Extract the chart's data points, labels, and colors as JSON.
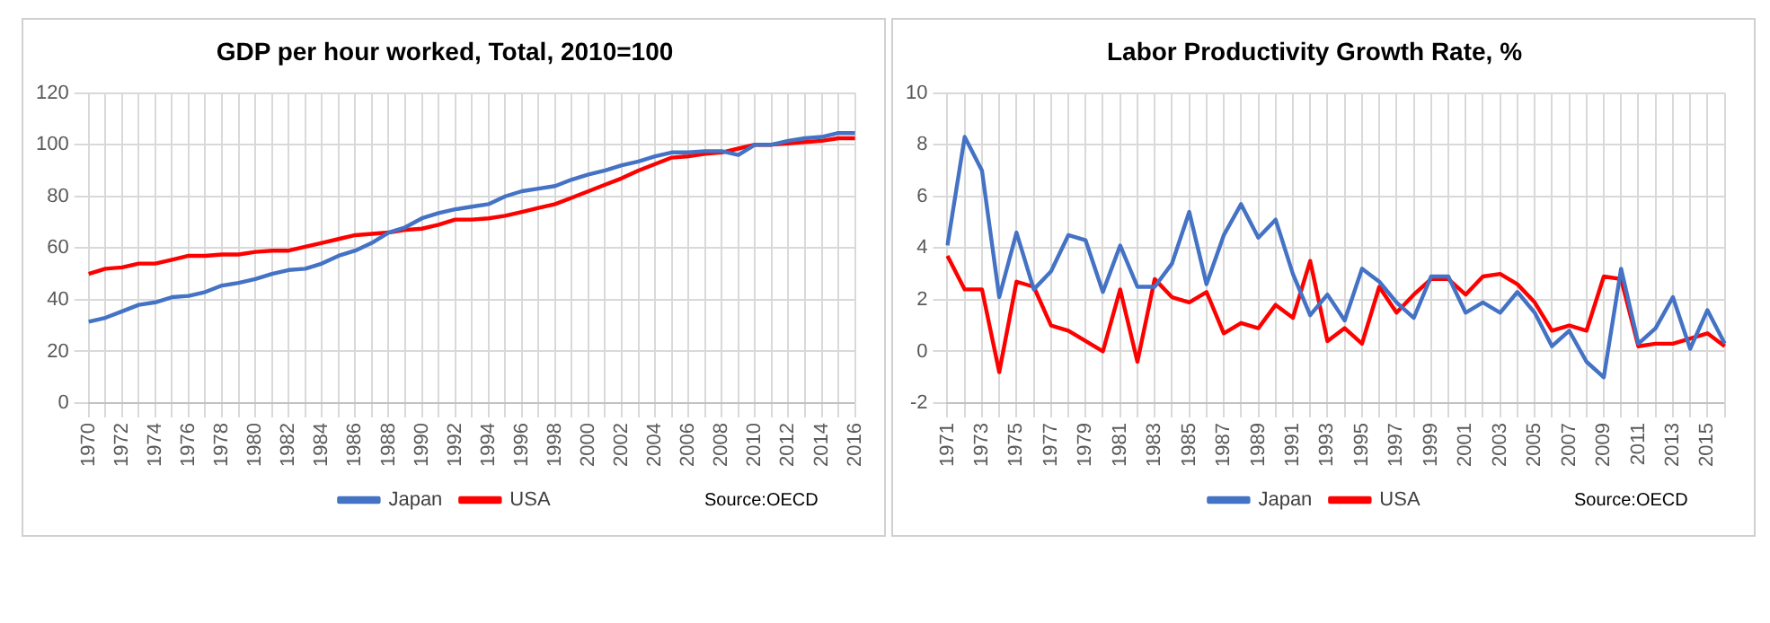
{
  "chart_data": [
    {
      "type": "line",
      "title": "GDP per hour worked, Total, 2010=100",
      "categories": [
        "1970",
        null,
        "1972",
        null,
        "1974",
        null,
        "1976",
        null,
        "1978",
        null,
        "1980",
        null,
        "1982",
        null,
        "1984",
        null,
        "1986",
        null,
        "1988",
        null,
        "1990",
        null,
        "1992",
        null,
        "1994",
        null,
        "1996",
        null,
        "1998",
        null,
        "2000",
        null,
        "2002",
        null,
        "2004",
        null,
        "2006",
        null,
        "2008",
        null,
        "2010",
        null,
        "2012",
        null,
        "2014",
        null,
        "2016"
      ],
      "series": [
        {
          "name": "Japan",
          "color": "#4472c4",
          "values": [
            31.5,
            33,
            35.5,
            38,
            39,
            41,
            41.5,
            43,
            45.5,
            46.5,
            48,
            50,
            51.5,
            52,
            54,
            57,
            59,
            62,
            66,
            68,
            71.5,
            73.5,
            75,
            76,
            77,
            80,
            82,
            83,
            84,
            86.5,
            88.5,
            90,
            92,
            93.5,
            95.5,
            97,
            97,
            97.5,
            97.5,
            96,
            100,
            100,
            101.5,
            102.5,
            103,
            104.5,
            104.5
          ]
        },
        {
          "name": "USA",
          "color": "#ff0000",
          "values": [
            50,
            52,
            52.5,
            54,
            54,
            55.5,
            57,
            57,
            57.5,
            57.5,
            58.5,
            59,
            59,
            60.5,
            62,
            63.5,
            65,
            65.5,
            66,
            67,
            67.5,
            69,
            71,
            71,
            71.5,
            72.5,
            74,
            75.5,
            77,
            79.5,
            82,
            84.5,
            87,
            90,
            92.5,
            95,
            95.5,
            96.5,
            97,
            98.5,
            100,
            100,
            100.5,
            101,
            101.5,
            102.5,
            102.5
          ]
        }
      ],
      "ylim": [
        0,
        120
      ],
      "yticks": [
        0,
        20,
        40,
        60,
        80,
        100,
        120
      ],
      "grid": true,
      "legend": "bottom",
      "annotations": [
        "Source:OECD"
      ]
    },
    {
      "type": "line",
      "title": "Labor Productivity Growth Rate, %",
      "categories": [
        "1971",
        null,
        "1973",
        null,
        "1975",
        null,
        "1977",
        null,
        "1979",
        null,
        "1981",
        null,
        "1983",
        null,
        "1985",
        null,
        "1987",
        null,
        "1989",
        null,
        "1991",
        null,
        "1993",
        null,
        "1995",
        null,
        "1997",
        null,
        "1999",
        null,
        "2001",
        null,
        "2003",
        null,
        "2005",
        null,
        "2007",
        null,
        "2009",
        null,
        "2011",
        null,
        "2013",
        null,
        "2015",
        null
      ],
      "series": [
        {
          "name": "Japan",
          "color": "#4472c4",
          "values": [
            4.1,
            8.3,
            7.0,
            2.1,
            4.6,
            2.4,
            3.1,
            4.5,
            4.3,
            2.3,
            4.1,
            2.5,
            2.5,
            3.4,
            5.4,
            2.6,
            4.5,
            5.7,
            4.4,
            5.1,
            3.0,
            1.4,
            2.2,
            1.2,
            3.2,
            2.7,
            1.9,
            1.3,
            2.9,
            2.9,
            1.5,
            1.9,
            1.5,
            2.3,
            1.5,
            0.2,
            0.8,
            -0.4,
            -1.0,
            3.2,
            0.3,
            0.9,
            2.1,
            0.1,
            1.6,
            0.3
          ]
        },
        {
          "name": "USA",
          "color": "#ff0000",
          "values": [
            3.7,
            2.4,
            2.4,
            -0.8,
            2.7,
            2.5,
            1.0,
            0.8,
            0.4,
            0.0,
            2.4,
            -0.4,
            2.8,
            2.1,
            1.9,
            2.3,
            0.7,
            1.1,
            0.9,
            1.8,
            1.3,
            3.5,
            0.4,
            0.9,
            0.3,
            2.5,
            1.5,
            2.2,
            2.8,
            2.8,
            2.2,
            2.9,
            3.0,
            2.6,
            1.9,
            0.8,
            1.0,
            0.8,
            2.9,
            2.8,
            0.2,
            0.3,
            0.3,
            0.5,
            0.7,
            0.2
          ]
        }
      ],
      "ylim": [
        -2,
        10
      ],
      "yticks": [
        -2,
        0,
        2,
        4,
        6,
        8,
        10
      ],
      "grid": true,
      "legend": "bottom",
      "annotations": [
        "Source:OECD"
      ]
    }
  ]
}
